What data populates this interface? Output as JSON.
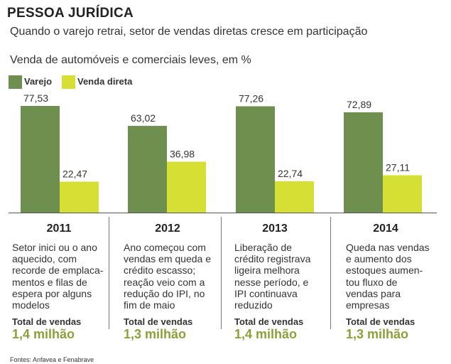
{
  "header": {
    "title": "PESSOA JURÍDICA",
    "subtitle": "Quando o varejo retrai, setor de vendas diretas cresce em participação"
  },
  "chart_data": {
    "type": "bar",
    "title": "Venda de automóveis e comerciais leves, em %",
    "categories": [
      "2011",
      "2012",
      "2013",
      "2014"
    ],
    "series": [
      {
        "name": "Varejo",
        "color": "#6f8f4e",
        "values": [
          77.53,
          63.02,
          77.26,
          72.89
        ],
        "labels": [
          "77,53",
          "63,02",
          "77,26",
          "72,89"
        ]
      },
      {
        "name": "Venda direta",
        "color": "#d6df33",
        "values": [
          22.47,
          36.98,
          22.74,
          27.11
        ],
        "labels": [
          "22,47",
          "36,98",
          "22,74",
          "27,11"
        ]
      }
    ],
    "ylim": [
      0,
      100
    ],
    "grid": false,
    "legend": "top-left"
  },
  "panels": [
    {
      "year": "2011",
      "text": "Setor inici ou o ano\naquecido, com\nrecorde de emplaca-\nmentos e filas de\nespera por alguns\nmodelos",
      "total_label": "Total de vendas",
      "total_value": "1,4 milhão"
    },
    {
      "year": "2012",
      "text": "Ano começou com\nvendas em queda e\ncrédito escasso;\nreação veio com a\nredução do IPI, no\nfim de maio",
      "total_label": "Total de vendas",
      "total_value": "1,3 milhão"
    },
    {
      "year": "2013",
      "text": "Liberação de\ncrédito registrava\nligeira melhora\nnesse período, e\nIPI continuava\nreduzido",
      "total_label": "Total de vendas",
      "total_value": "1,4 milhão"
    },
    {
      "year": "2014",
      "text": "Queda nas vendas\ne aumento dos\nestoques aumen-\ntou fluxo de\nvendas para\nempresas",
      "total_label": "Total de vendas",
      "total_value": "1,3 milhão"
    }
  ],
  "footer": {
    "source": "Fontes: Anfavea e Fenabrave"
  }
}
